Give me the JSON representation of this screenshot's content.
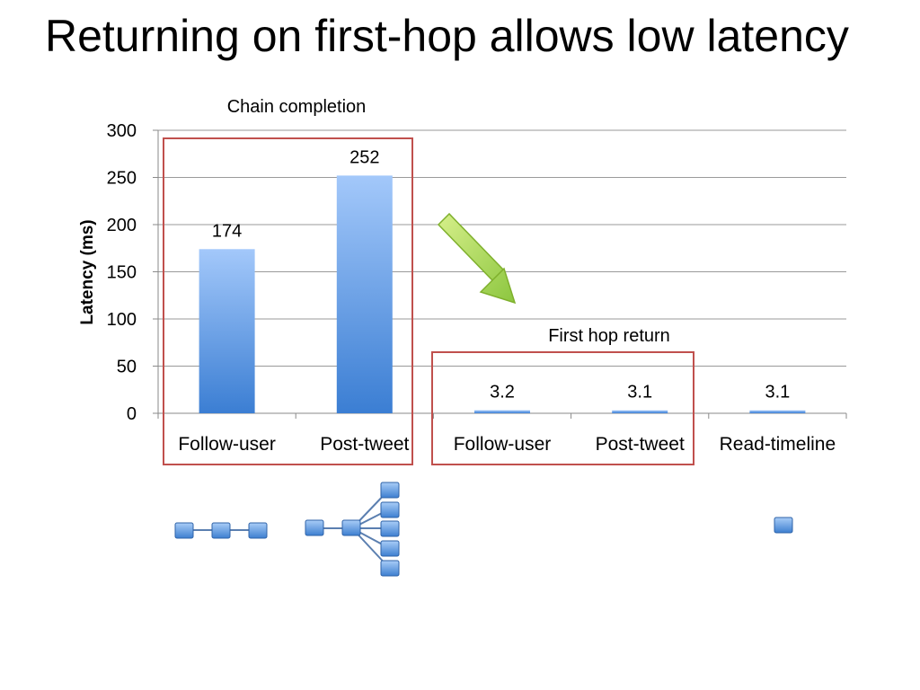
{
  "slide": {
    "title": "Returning on first-hop allows low latency"
  },
  "chart_data": {
    "type": "bar",
    "title": "",
    "xlabel": "",
    "ylabel": "Latency (ms)",
    "ylim": [
      0,
      300
    ],
    "yticks": [
      0,
      50,
      100,
      150,
      200,
      250,
      300
    ],
    "grid": true,
    "categories": [
      "Follow-user",
      "Post-tweet",
      "Follow-user",
      "Post-tweet",
      "Read-timeline"
    ],
    "values": [
      174,
      252,
      3.2,
      3.1,
      3.1
    ],
    "data_labels": [
      "174",
      "252",
      "3.2",
      "3.1",
      "3.1"
    ],
    "groups": [
      {
        "label": "Chain completion",
        "categories": [
          0,
          1
        ]
      },
      {
        "label": "First hop return",
        "categories": [
          2,
          3
        ]
      }
    ],
    "colors": {
      "bar_top": "#9fc5f8",
      "bar_bottom": "#3a7fd4",
      "group_box": "#c0504d",
      "arrow": "#9acd32"
    }
  }
}
